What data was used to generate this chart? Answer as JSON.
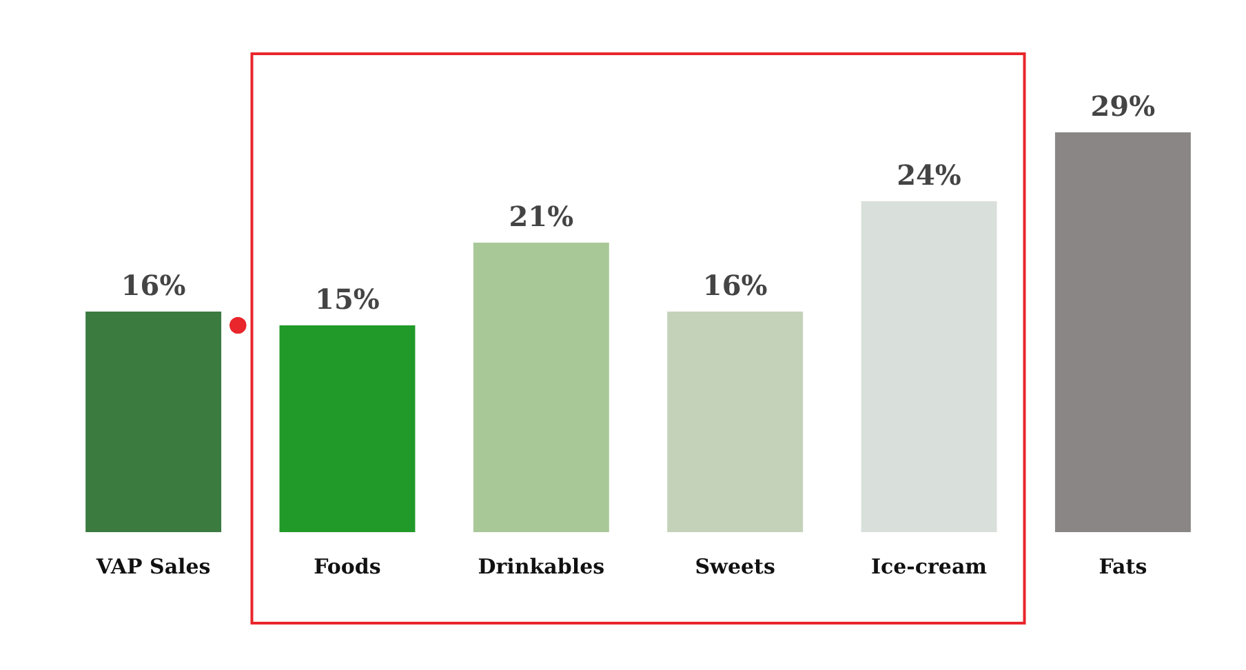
{
  "chart_data": {
    "type": "bar",
    "categories": [
      "VAP Sales",
      "Foods",
      "Drinkables",
      "Sweets",
      "Ice-cream",
      "Fats"
    ],
    "values": [
      16,
      15,
      21,
      16,
      24,
      29
    ],
    "colors": [
      "#3b7b40",
      "#229a2a",
      "#a9c898",
      "#c4d2ba",
      "#d9dfda",
      "#8a8685"
    ],
    "value_labels": [
      "16%",
      "15%",
      "21%",
      "16%",
      "24%",
      "29%"
    ]
  }
}
